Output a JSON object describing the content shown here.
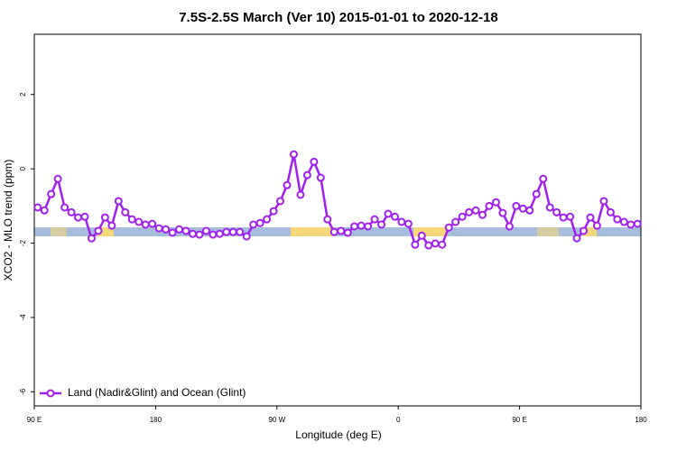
{
  "chart_data": {
    "type": "line",
    "title": "7.5S-2.5S March (Ver 10)   2015-01-01 to 2020-12-18",
    "x_label": "Longitude (deg E)",
    "y_label": "XCO2 - MLO trend (ppm)",
    "x": [
      92.5,
      97.5,
      102.5,
      107.5,
      112.5,
      117.5,
      122.5,
      127.5,
      132.5,
      137.5,
      142.5,
      147.5,
      152.5,
      157.5,
      162.5,
      167.5,
      172.5,
      177.5,
      182.5,
      187.5,
      192.5,
      197.5,
      202.5,
      207.5,
      212.5,
      217.5,
      222.5,
      227.5,
      232.5,
      237.5,
      242.5,
      247.5,
      252.5,
      257.5,
      262.5,
      267.5,
      272.5,
      277.5,
      282.5,
      287.5,
      292.5,
      297.5,
      302.5,
      307.5,
      312.5,
      317.5,
      322.5,
      327.5,
      332.5,
      337.5,
      342.5,
      347.5,
      352.5,
      357.5,
      362.5,
      367.5,
      372.5,
      377.5,
      382.5,
      387.5,
      392.5,
      397.5,
      402.5,
      407.5,
      412.5,
      417.5,
      422.5,
      427.5,
      432.5,
      437.5,
      442.5,
      447.5,
      452.5,
      457.5,
      462.5,
      467.5,
      472.5,
      477.5,
      482.5,
      487.5,
      492.5,
      497.5,
      502.5,
      507.5,
      512.5,
      517.5,
      522.5,
      527.5,
      532.5,
      537.5
    ],
    "series": [
      {
        "name": "Land (Nadir&Glint) and Ocean (Glint)",
        "color": "#a020f0",
        "values": [
          -1.04,
          -1.12,
          -0.68,
          -0.27,
          -1.04,
          -1.17,
          -1.31,
          -1.29,
          -1.87,
          -1.67,
          -1.31,
          -1.53,
          -0.87,
          -1.17,
          -1.36,
          -1.43,
          -1.5,
          -1.48,
          -1.6,
          -1.63,
          -1.72,
          -1.63,
          -1.67,
          -1.75,
          -1.77,
          -1.67,
          -1.77,
          -1.75,
          -1.7,
          -1.7,
          -1.7,
          -1.82,
          -1.5,
          -1.46,
          -1.36,
          -1.14,
          -0.87,
          -0.44,
          0.39,
          -0.7,
          -0.17,
          0.19,
          -0.24,
          -1.36,
          -1.7,
          -1.67,
          -1.72,
          -1.55,
          -1.53,
          -1.55,
          -1.36,
          -1.5,
          -1.21,
          -1.29,
          -1.43,
          -1.48,
          -2.04,
          -1.8,
          -2.06,
          -2.01,
          -2.04,
          -1.58,
          -1.43,
          -1.29,
          -1.17,
          -1.12,
          -1.24,
          -1.0,
          -0.9,
          -1.19,
          -1.55,
          -1.0,
          -1.07,
          -1.12,
          -0.68,
          -0.27,
          -1.04,
          -1.17,
          -1.31,
          -1.29,
          -1.87,
          -1.67,
          -1.31,
          -1.53,
          -0.87,
          -1.17,
          -1.36,
          -1.43,
          -1.5,
          -1.48
        ]
      }
    ],
    "xlim": [
      90,
      540
    ],
    "xticks": [
      {
        "value": 90,
        "label": "90 E"
      },
      180,
      {
        "value": 270,
        "label": "90 W"
      },
      {
        "value": 360,
        "label": "0"
      },
      {
        "value": 450,
        "label": "90 E"
      },
      {
        "value": 540,
        "label": "180"
      }
    ],
    "ylim": [
      -6.38,
      3.62
    ],
    "yticks": [
      2,
      0,
      -2,
      -4,
      -6
    ],
    "legend": "bottom-left"
  }
}
